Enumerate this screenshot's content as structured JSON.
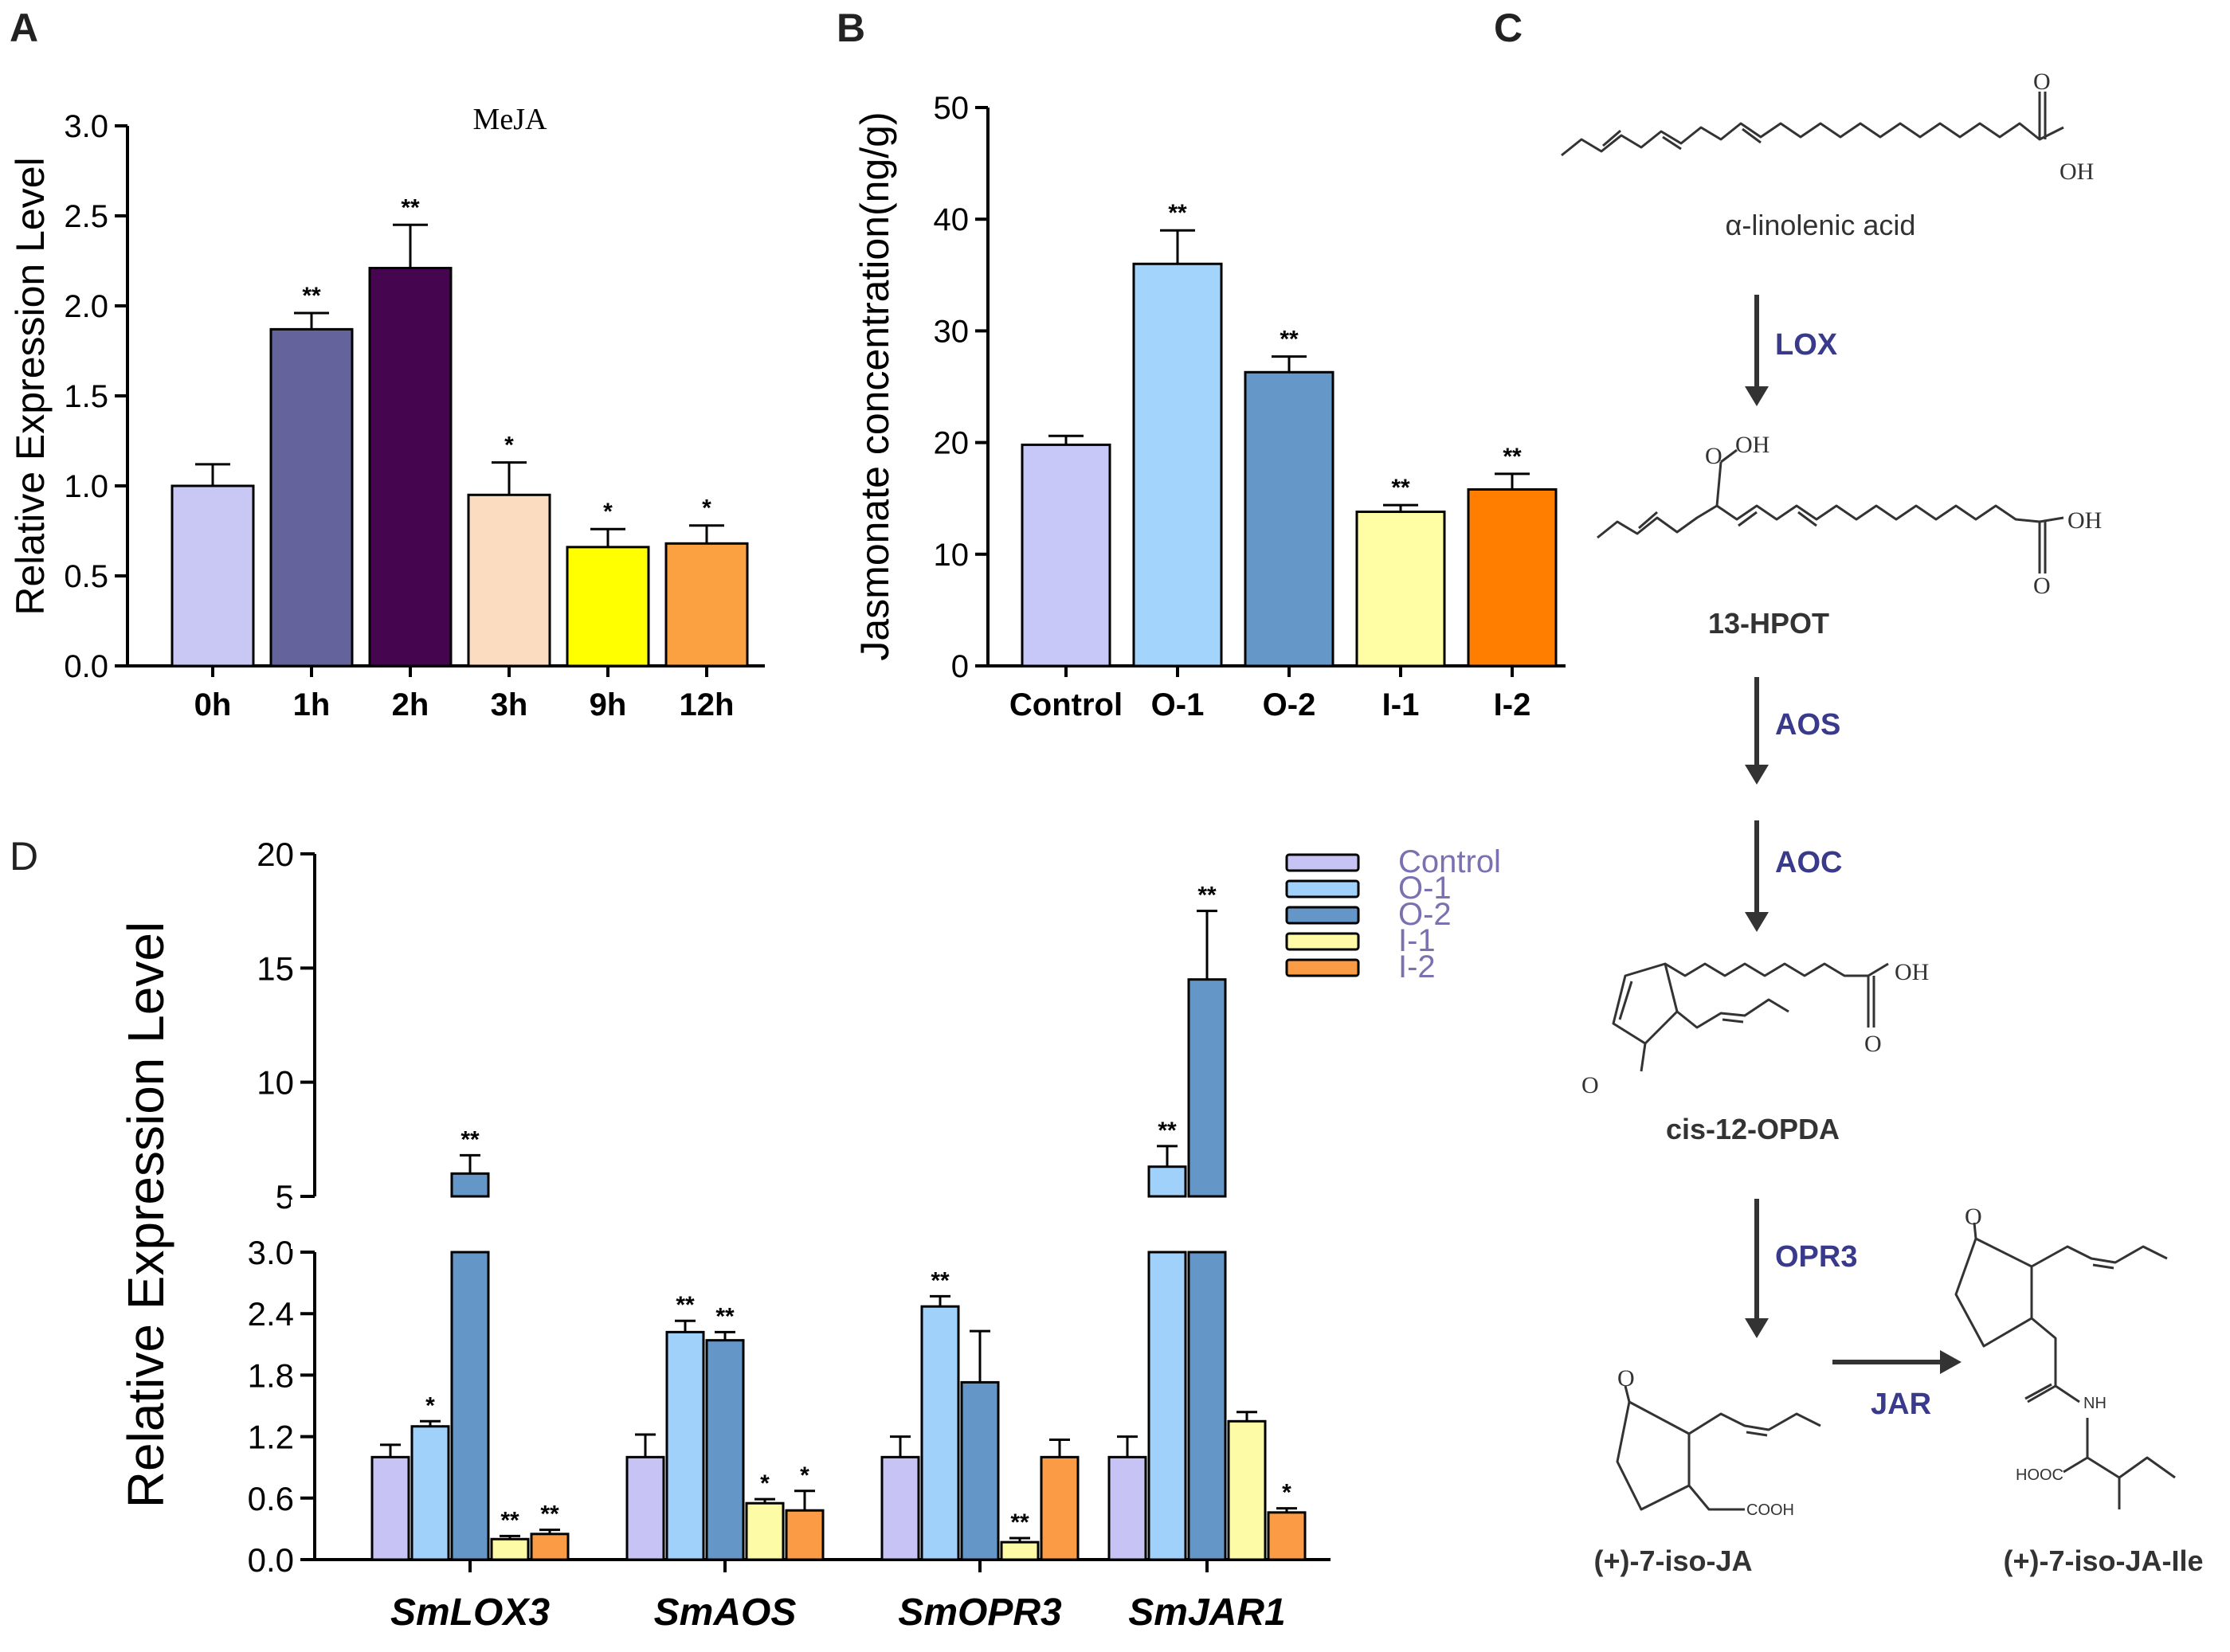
{
  "panels": {
    "a": "A",
    "b": "B",
    "c": "C",
    "d": "D"
  },
  "chart_data": [
    {
      "id": "A",
      "type": "bar",
      "title": "MeJA",
      "ylabel": "Relative Expression Level",
      "xlabel": "",
      "ylim": [
        0,
        3.0
      ],
      "yticks": [
        "0.0",
        "0.5",
        "1.0",
        "1.5",
        "2.0",
        "2.5",
        "3.0"
      ],
      "categories": [
        "0h",
        "1h",
        "2h",
        "3h",
        "9h",
        "12h"
      ],
      "values": [
        1.0,
        1.87,
        2.21,
        0.95,
        0.66,
        0.68
      ],
      "errors": [
        0.12,
        0.09,
        0.24,
        0.18,
        0.1,
        0.1
      ],
      "significance": [
        "",
        "**",
        "**",
        "*",
        "*",
        "*"
      ],
      "colors": [
        "#c9c8f4",
        "#65639b",
        "#45054f",
        "#fcdcc0",
        "#ffff00",
        "#fba142"
      ]
    },
    {
      "id": "B",
      "type": "bar",
      "title": "",
      "ylabel": "Jasmonate concentration(ng/g)",
      "xlabel": "",
      "ylim": [
        0,
        50
      ],
      "yticks": [
        "0",
        "10",
        "20",
        "30",
        "40",
        "50"
      ],
      "categories": [
        "Control",
        "O-1",
        "O-2",
        "I-1",
        "I-2"
      ],
      "values": [
        19.8,
        36.0,
        26.3,
        13.8,
        15.8
      ],
      "errors": [
        0.8,
        3.0,
        1.4,
        0.6,
        1.4
      ],
      "significance": [
        "",
        "**",
        "**",
        "**",
        "**"
      ],
      "colors": [
        "#c8c8f8",
        "#a3d4fb",
        "#6697c9",
        "#fffea4",
        "#ff7e00"
      ]
    },
    {
      "id": "D",
      "type": "bar",
      "title": "",
      "ylabel": "Relative Expression Level",
      "xlabel": "",
      "broken_axis": true,
      "lower_ylim": [
        0,
        3.0
      ],
      "upper_ylim": [
        5,
        20
      ],
      "lower_yticks": [
        "0.0",
        "0.6",
        "1.2",
        "1.8",
        "2.4",
        "3.0"
      ],
      "upper_yticks": [
        "5",
        "10",
        "15",
        "20"
      ],
      "categories": [
        "SmLOX3",
        "SmAOS",
        "SmOPR3",
        "SmJAR1"
      ],
      "series": [
        {
          "name": "Control",
          "color": "#c8c3f5",
          "values": [
            1.0,
            1.0,
            1.0,
            1.0
          ],
          "errors": [
            0.12,
            0.22,
            0.2,
            0.2
          ],
          "significance": [
            "",
            "",
            "",
            ""
          ]
        },
        {
          "name": "O-1",
          "color": "#9fd1fb",
          "values": [
            1.3,
            2.22,
            2.47,
            6.3
          ],
          "errors": [
            0.05,
            0.11,
            0.1,
            0.9
          ],
          "significance": [
            "*",
            "**",
            "**",
            "**"
          ]
        },
        {
          "name": "O-2",
          "color": "#6496c8",
          "values": [
            6.0,
            2.14,
            1.73,
            14.5
          ],
          "errors": [
            0.8,
            0.08,
            0.5,
            3.0
          ],
          "significance": [
            "**",
            "**",
            "",
            "**"
          ]
        },
        {
          "name": "I-1",
          "color": "#fdfba5",
          "values": [
            0.2,
            0.55,
            0.17,
            1.35
          ],
          "errors": [
            0.03,
            0.04,
            0.04,
            0.09
          ],
          "significance": [
            "**",
            "*",
            "**",
            ""
          ]
        },
        {
          "name": "I-2",
          "color": "#fc9b45",
          "values": [
            0.25,
            0.48,
            1.0,
            0.46
          ],
          "errors": [
            0.04,
            0.19,
            0.17,
            0.04
          ],
          "significance": [
            "**",
            "*",
            "",
            "*"
          ]
        }
      ],
      "legend_position": "top-right"
    }
  ],
  "pathway": {
    "compounds": [
      "α-linolenic acid",
      "13-HPOT",
      "cis-12-OPDA",
      "(+)-7-iso-JA",
      "(+)-7-iso-JA-Ile"
    ],
    "enzymes": [
      "LOX",
      "AOS",
      "AOC",
      "OPR3",
      "JAR"
    ],
    "atoms": {
      "o": "O",
      "oh": "OH",
      "cooh": "COOH",
      "hooc": "HOOC",
      "nh": "NH"
    }
  }
}
